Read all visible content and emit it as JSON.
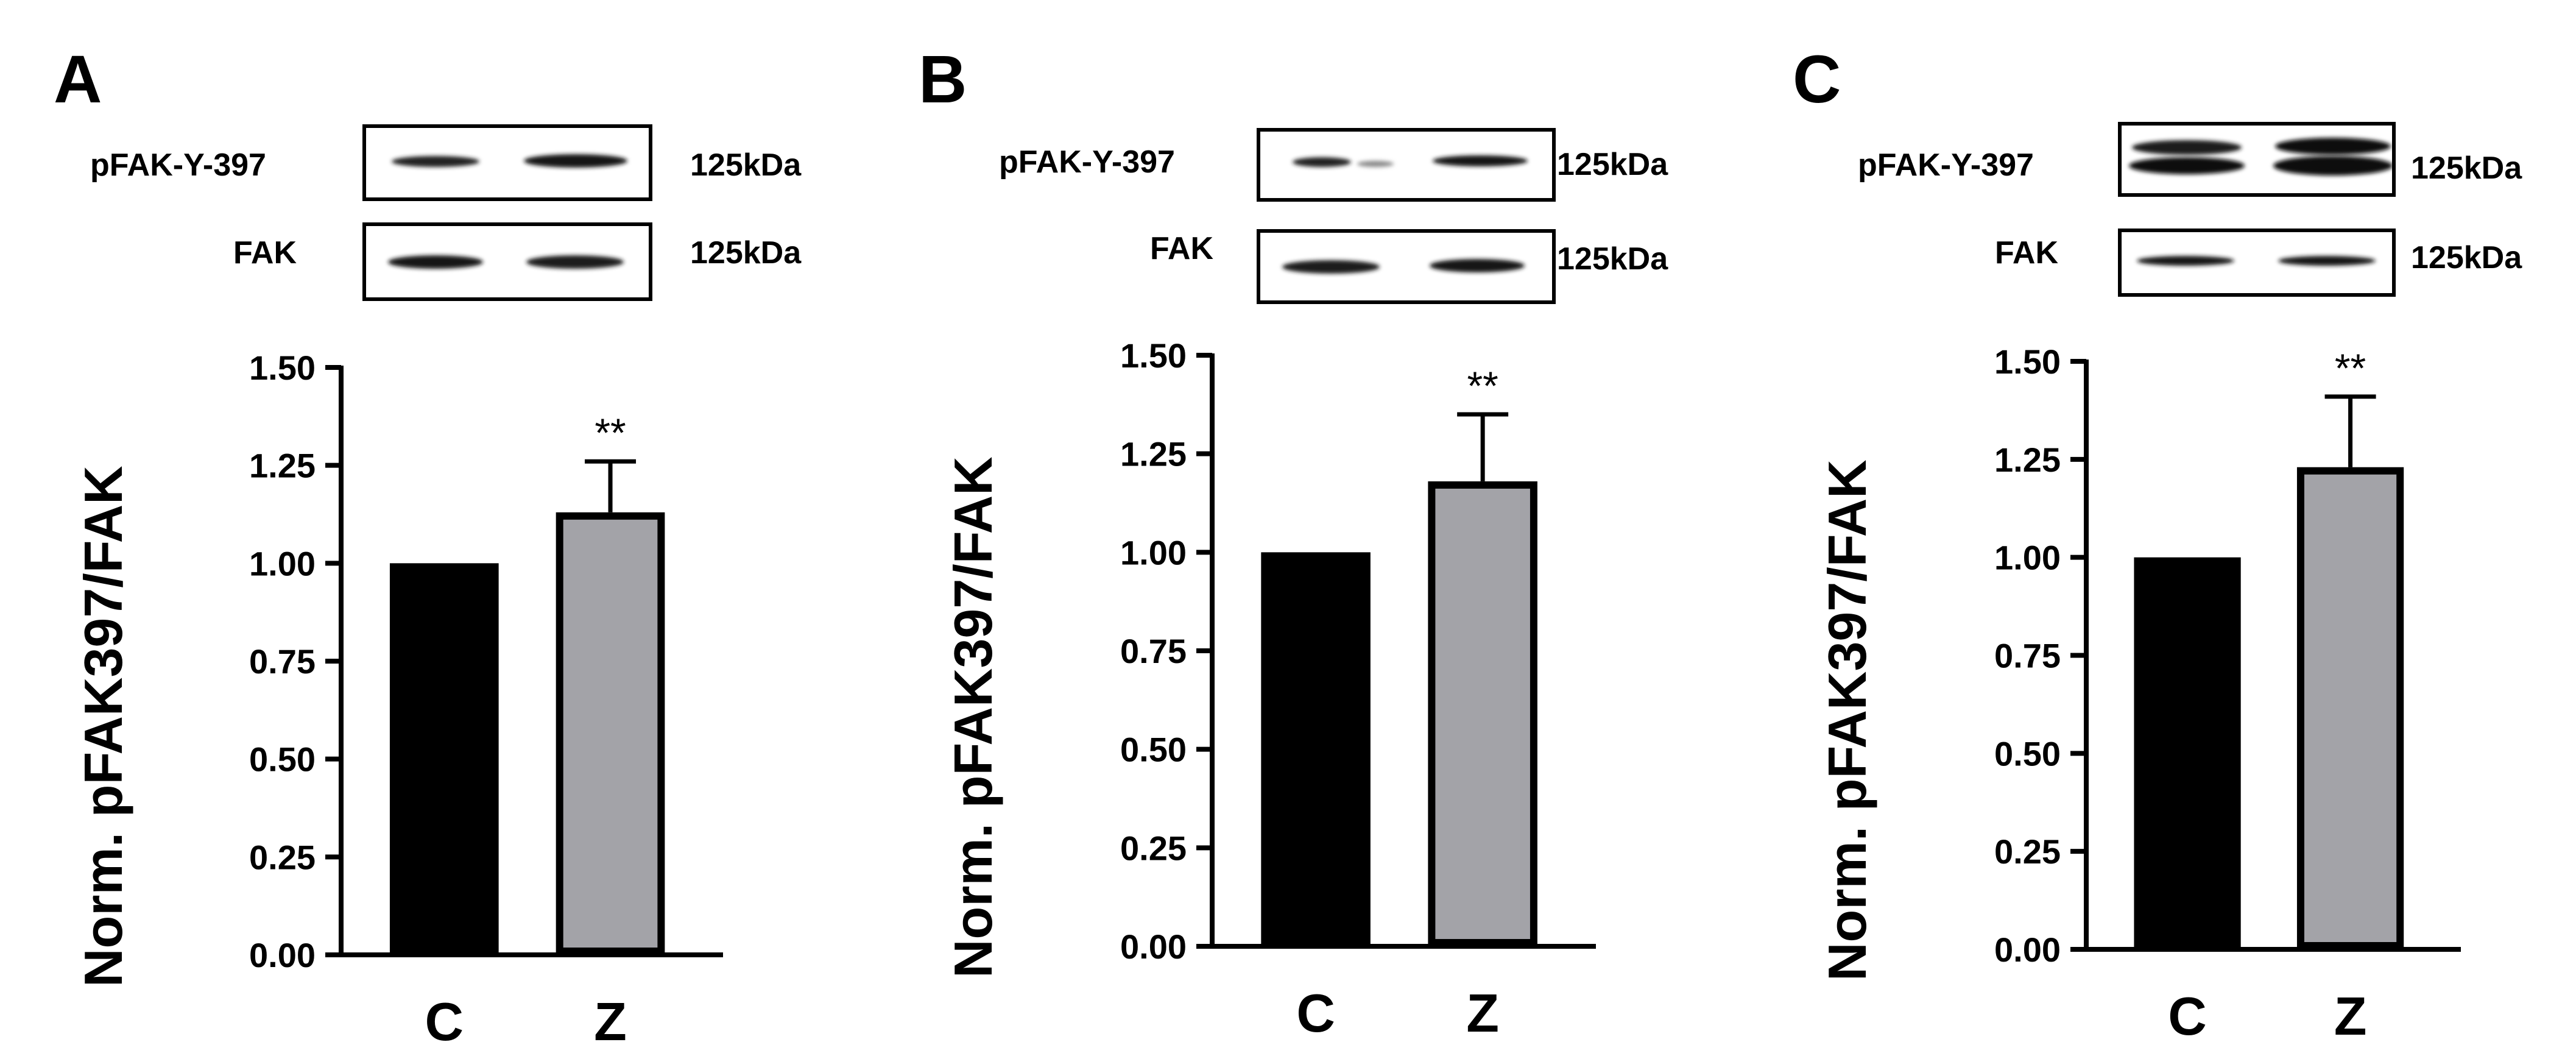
{
  "panels": [
    {
      "letter": "A",
      "blots": [
        {
          "label": "pFAK-Y-397",
          "size": "125kDa"
        },
        {
          "label": "FAK",
          "size": "125kDa"
        }
      ]
    },
    {
      "letter": "B",
      "blots": [
        {
          "label": "pFAK-Y-397",
          "size": "125kDa"
        },
        {
          "label": "FAK",
          "size": "125kDa"
        }
      ]
    },
    {
      "letter": "C",
      "blots": [
        {
          "label": "pFAK-Y-397",
          "size": "125kDa"
        },
        {
          "label": "FAK",
          "size": "125kDa"
        }
      ]
    }
  ],
  "chart_data": [
    {
      "type": "bar",
      "categories": [
        "C",
        "Z"
      ],
      "values": [
        1.0,
        1.13
      ],
      "errors": [
        null,
        0.13
      ],
      "significance": [
        null,
        "**"
      ],
      "ylabel": "Norm. pFAK397/FAK",
      "ylim": [
        0,
        1.5
      ],
      "yticks": [
        "0.00",
        "0.25",
        "0.50",
        "0.75",
        "1.00",
        "1.25",
        "1.50"
      ],
      "colors": [
        "#000000",
        "#a3a3a8"
      ]
    },
    {
      "type": "bar",
      "categories": [
        "C",
        "Z"
      ],
      "values": [
        1.0,
        1.18
      ],
      "errors": [
        null,
        0.17
      ],
      "significance": [
        null,
        "**"
      ],
      "ylabel": "Norm. pFAK397/FAK",
      "ylim": [
        0,
        1.5
      ],
      "yticks": [
        "0.00",
        "0.25",
        "0.50",
        "0.75",
        "1.00",
        "1.25",
        "1.50"
      ],
      "colors": [
        "#000000",
        "#a3a3a8"
      ]
    },
    {
      "type": "bar",
      "categories": [
        "C",
        "Z"
      ],
      "values": [
        1.0,
        1.23
      ],
      "errors": [
        null,
        0.18
      ],
      "significance": [
        null,
        "**"
      ],
      "ylabel": "Norm. pFAK397/FAK",
      "ylim": [
        0,
        1.5
      ],
      "yticks": [
        "0.00",
        "0.25",
        "0.50",
        "0.75",
        "1.00",
        "1.25",
        "1.50"
      ],
      "colors": [
        "#000000",
        "#a3a3a8"
      ]
    }
  ]
}
